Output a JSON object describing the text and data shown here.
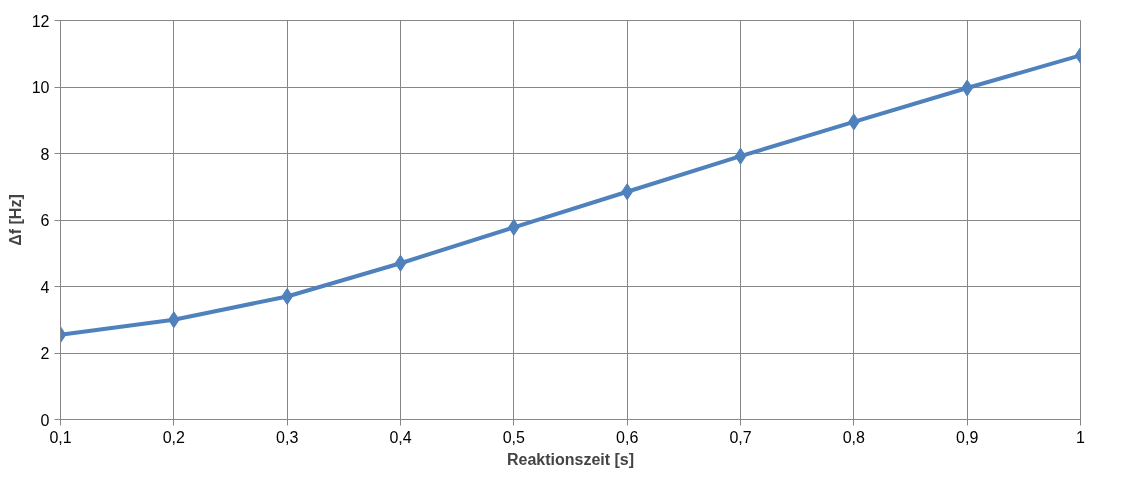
{
  "chart_data": {
    "type": "line",
    "xlabel": "Reaktionszeit [s]",
    "ylabel": "Δf [Hz]",
    "x": [
      0.1,
      0.2,
      0.3,
      0.4,
      0.5,
      0.6,
      0.7,
      0.8,
      0.9,
      1.0
    ],
    "series": [
      {
        "color": "#4f81bd",
        "values": [
          2.55,
          3.0,
          3.7,
          4.7,
          5.78,
          6.85,
          7.92,
          8.95,
          9.97,
          10.95
        ]
      }
    ],
    "xlim": [
      0.1,
      1.0
    ],
    "xticks": [
      {
        "value": 0.1,
        "label": "0,1"
      },
      {
        "value": 0.2,
        "label": "0,2"
      },
      {
        "value": 0.3,
        "label": "0,3"
      },
      {
        "value": 0.4,
        "label": "0,4"
      },
      {
        "value": 0.5,
        "label": "0,5"
      },
      {
        "value": 0.6,
        "label": "0,6"
      },
      {
        "value": 0.7,
        "label": "0,7"
      },
      {
        "value": 0.8,
        "label": "0,8"
      },
      {
        "value": 0.9,
        "label": "0,9"
      },
      {
        "value": 1.0,
        "label": "1"
      }
    ],
    "ylim": [
      0,
      12
    ],
    "yticks": [
      0,
      2,
      4,
      6,
      8,
      10,
      12
    ],
    "grid": true,
    "marker": "diamond",
    "line_style": "solid"
  }
}
